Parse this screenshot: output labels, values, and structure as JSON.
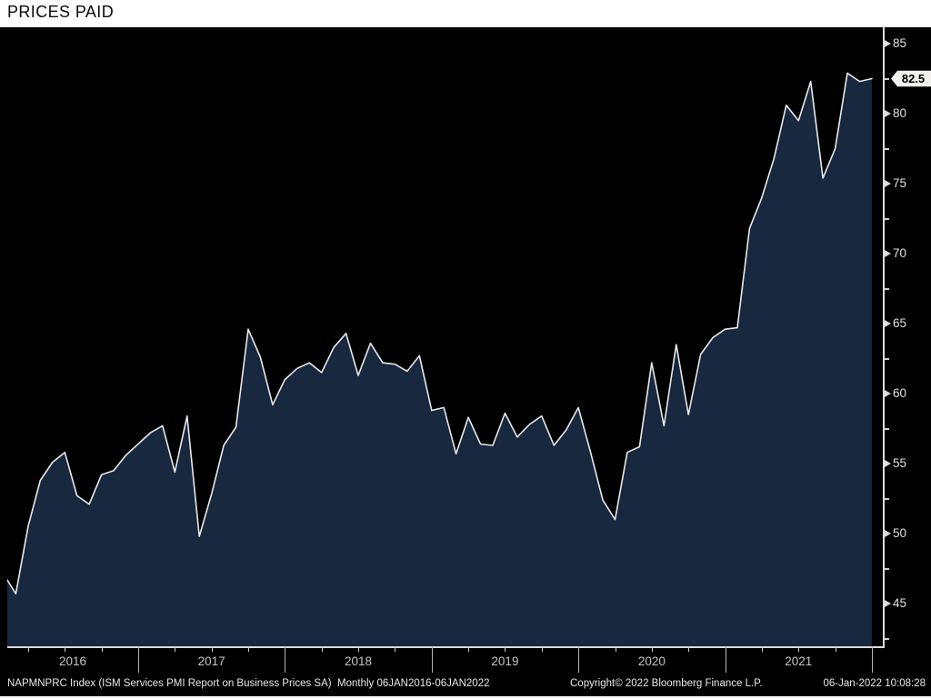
{
  "title": "PRICES PAID",
  "last_price_flag": {
    "value": "82.5"
  },
  "y_axis": {
    "major_labels": [
      85,
      80,
      75,
      70,
      65,
      60,
      55,
      50,
      45
    ],
    "minor_ticks": [
      82.5,
      77.5,
      72.5,
      67.5,
      62.5,
      57.5,
      52.5,
      47.5,
      42.5
    ]
  },
  "x_axis": {
    "year_labels": [
      "2016",
      "2017",
      "2018",
      "2019",
      "2020",
      "2021"
    ]
  },
  "footer": {
    "left": "NAPMNPRC Index (ISM Services PMI Report on Business Prices SA)  Monthly 06JAN2016-06JAN2022",
    "copyright": "Copyright© 2022 Bloomberg Finance L.P.",
    "timestamp": "06-Jan-2022 10:08:28"
  },
  "colors": {
    "page_bg": "#ffffff",
    "title_text": "#0b0b0b",
    "chart_bg": "#000000",
    "area_fill": "#17283f",
    "line": "#e9e9e9",
    "axis_line": "#dcdcdc",
    "axis_label": "#e0e0e0",
    "tick": "#cfcfcf",
    "divider": "#b5b5b5",
    "year_label": "#c6c6c6",
    "footer_text": "#e8e8e8",
    "flag_bg": "#f2f1ec",
    "flag_text": "#000000"
  },
  "chart_data": {
    "type": "area",
    "title": "PRICES PAID",
    "series_name": "NAPMNPRC Index (ISM Services PMI Report on Business Prices SA)",
    "frequency": "monthly",
    "x_range": "06JAN2016 - 06JAN2022",
    "grid": false,
    "legend_position": "none",
    "ylim": [
      41.95,
      86.17
    ],
    "y_axis_side": "right",
    "last_value": 82.5,
    "values_by_year": {
      "2016": [
        47.1,
        45.7,
        50.5,
        53.8,
        55.1,
        55.8,
        52.7,
        52.1,
        54.2,
        54.5,
        55.6,
        56.4
      ],
      "2017": [
        57.2,
        57.7,
        54.4,
        58.4,
        49.8,
        52.8,
        56.3,
        57.6,
        64.6,
        62.6,
        59.2,
        61.0
      ],
      "2018": [
        61.8,
        62.2,
        61.5,
        63.3,
        64.3,
        61.3,
        63.6,
        62.2,
        62.1,
        61.6,
        62.7,
        58.8
      ],
      "2019": [
        59.0,
        55.7,
        58.3,
        56.4,
        56.3,
        58.6,
        56.9,
        57.8,
        58.4,
        56.3,
        57.4,
        59.0
      ],
      "2020": [
        55.8,
        52.4,
        51.0,
        55.8,
        56.2,
        62.2,
        57.7,
        63.5,
        58.5,
        62.8,
        64.0,
        64.6
      ],
      "2021": [
        64.7,
        71.8,
        74.0,
        76.8,
        80.6,
        79.5,
        82.3,
        75.4,
        77.5,
        82.9,
        82.3,
        82.5
      ]
    }
  }
}
